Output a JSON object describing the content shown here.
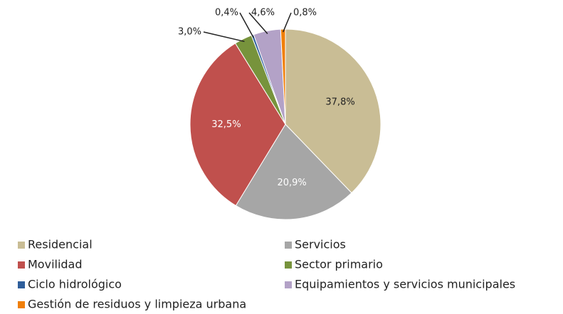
{
  "chart_data": {
    "type": "pie",
    "categories": [
      "Residencial",
      "Servicios",
      "Movilidad",
      "Sector primario",
      "Ciclo hidrológico",
      "Equipamientos y servicios municipales",
      "Gestión de residuos y limpieza urbana"
    ],
    "values": [
      37.8,
      20.9,
      32.5,
      3.0,
      0.4,
      4.6,
      0.8
    ],
    "value_labels": [
      "37,8%",
      "20,9%",
      "32,5%",
      "3,0%",
      "0,4%",
      "4,6%",
      "0,8%"
    ],
    "colors": [
      "#c9bd95",
      "#a6a6a6",
      "#c0504d",
      "#77933c",
      "#2e5e9b",
      "#b3a2c7",
      "#f07f09"
    ],
    "legend": "bottom"
  }
}
